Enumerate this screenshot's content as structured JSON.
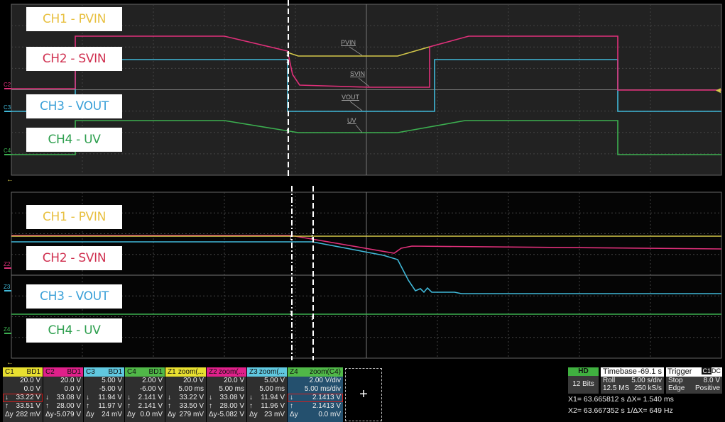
{
  "colors": {
    "ch1": "#d4c84a",
    "ch2": "#e0307a",
    "ch3": "#40b8d8",
    "ch4": "#3cb050",
    "grid": "#555"
  },
  "upper": {
    "labels": [
      {
        "text": "CH1 - PVIN",
        "color": "#e8c040"
      },
      {
        "text": "CH2 - SVIN",
        "color": "#d03050"
      },
      {
        "text": "CH3 - VOUT",
        "color": "#3aa0d8"
      },
      {
        "text": "CH4 - UV",
        "color": "#30a050"
      }
    ],
    "markers": [
      "C2",
      "C3",
      "C4"
    ],
    "trace_labels": [
      "PVIN",
      "SVIN",
      "VOUT",
      "UV"
    ]
  },
  "lower": {
    "labels": [
      {
        "text": "CH1 - PVIN",
        "color": "#e8c040"
      },
      {
        "text": "CH2 - SVIN",
        "color": "#d03050"
      },
      {
        "text": "CH3 - VOUT",
        "color": "#3aa0d8"
      },
      {
        "text": "CH4 - UV",
        "color": "#30a050"
      }
    ],
    "markers": [
      "Z2",
      "Z3",
      "Z4"
    ]
  },
  "channels": [
    {
      "name": "C1",
      "badge": "BD1",
      "color": "#e8e030",
      "rows": [
        [
          "",
          "20.0 V"
        ],
        [
          "",
          "0.0 V"
        ],
        [
          "↓",
          "33.22 V"
        ],
        [
          "↑",
          "33.51 V"
        ],
        [
          "Δy",
          "282 mV"
        ]
      ]
    },
    {
      "name": "C2",
      "badge": "BD1",
      "color": "#e0208a",
      "rows": [
        [
          "",
          "20.0 V"
        ],
        [
          "",
          "0.0 V"
        ],
        [
          "↓",
          "33.08 V"
        ],
        [
          "↑",
          "28.00 V"
        ],
        [
          "Δy",
          "-5.079 V"
        ]
      ]
    },
    {
      "name": "C3",
      "badge": "BD1",
      "color": "#60c8e0",
      "rows": [
        [
          "",
          "5.00 V"
        ],
        [
          "",
          "-5.00 V"
        ],
        [
          "↓",
          "11.94 V"
        ],
        [
          "↑",
          "11.97 V"
        ],
        [
          "Δy",
          "24 mV"
        ]
      ]
    },
    {
      "name": "C4",
      "badge": "BD1",
      "color": "#50b848",
      "rows": [
        [
          "",
          "2.00 V"
        ],
        [
          "",
          "-6.00 V"
        ],
        [
          "↓",
          "2.141 V"
        ],
        [
          "↑",
          "2.141 V"
        ],
        [
          "Δy",
          "0.0 mV"
        ]
      ]
    },
    {
      "name": "Z1",
      "badge": "zoom(...",
      "color": "#e8e030",
      "rows": [
        [
          "",
          "20.0 V"
        ],
        [
          "",
          "5.00 ms"
        ],
        [
          "↓",
          "33.22 V"
        ],
        [
          "↑",
          "33.50 V"
        ],
        [
          "Δy",
          "279 mV"
        ]
      ]
    },
    {
      "name": "Z2",
      "badge": "zoom(...",
      "color": "#e0208a",
      "rows": [
        [
          "",
          "20.0 V"
        ],
        [
          "",
          "5.00 ms"
        ],
        [
          "↓",
          "33.08 V"
        ],
        [
          "↑",
          "28.00 V"
        ],
        [
          "Δy",
          "-5.082 V"
        ]
      ]
    },
    {
      "name": "Z3",
      "badge": "zoom(...",
      "color": "#60c8e0",
      "rows": [
        [
          "",
          "5.00 V"
        ],
        [
          "",
          "5.00 ms"
        ],
        [
          "↓",
          "11.94 V"
        ],
        [
          "↑",
          "11.96 V"
        ],
        [
          "Δy",
          "23 mV"
        ]
      ]
    },
    {
      "name": "Z4",
      "badge": "zoom(C4)",
      "color": "#50b848",
      "rows": [
        [
          "",
          "2.00 V/div"
        ],
        [
          "",
          "5.00 ms/div"
        ],
        [
          "↓",
          "2.1413 V"
        ],
        [
          "↑",
          "2.1413 V"
        ],
        [
          "Δy",
          "0.0 mV"
        ]
      ]
    }
  ],
  "add_button": "+",
  "hd": {
    "title": "HD",
    "bits": "12 Bits"
  },
  "timebase": {
    "title": "Timebase",
    "value": "-69.1 s",
    "mode": "Roll",
    "div": "5.00 s/div",
    "mem": "12.5 MS",
    "rate": "250 kS/s"
  },
  "trigger": {
    "title": "Trigger",
    "src": "C1",
    "coupling": "DC",
    "state": "Stop",
    "level": "8.0 V",
    "type": "Edge",
    "slope": "Positive"
  },
  "cursors": {
    "x1": "X1= 63.665812 s ΔX=     1.540 ms",
    "x2": "X2= 63.667352 s 1/ΔX= 649 Hz"
  }
}
